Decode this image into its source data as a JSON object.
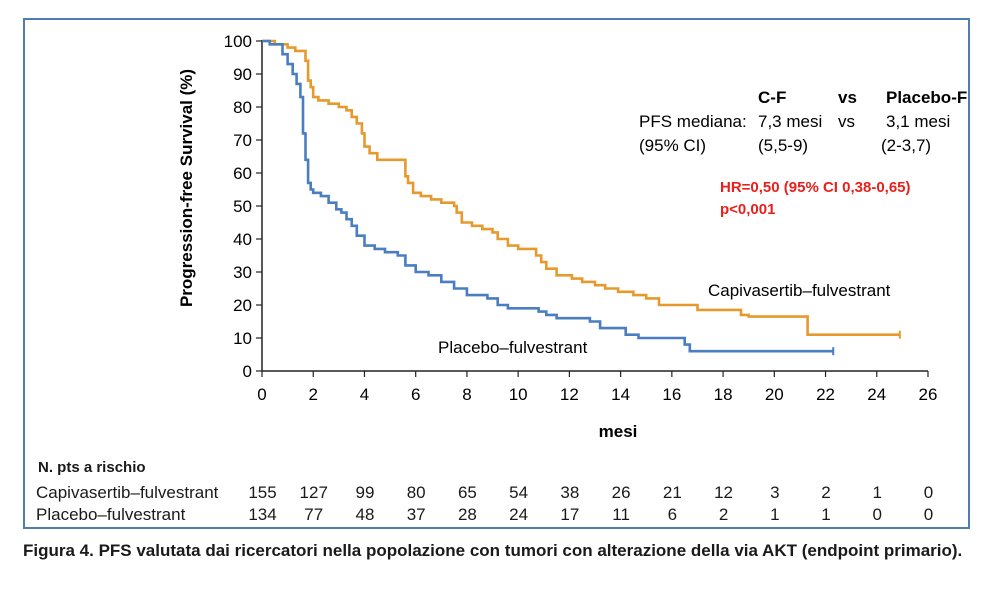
{
  "chart_data": {
    "type": "line",
    "xlabel": "mesi",
    "ylabel": "Progression-free Survival (%)",
    "xlim": [
      0,
      26
    ],
    "ylim": [
      0,
      100
    ],
    "x_ticks": [
      "0",
      "2",
      "4",
      "6",
      "8",
      "10",
      "12",
      "14",
      "16",
      "18",
      "20",
      "22",
      "24",
      "26"
    ],
    "y_ticks": [
      "0",
      "10",
      "20",
      "30",
      "40",
      "50",
      "60",
      "70",
      "80",
      "90",
      "100"
    ],
    "grid": false,
    "colors": {
      "capivasertib": "#e69a2e",
      "placebo": "#4a7ec0",
      "hr_text": "#e8211c",
      "frame": "#4f7cb1"
    },
    "series": [
      {
        "name": "Capivasertib–fulvestrant",
        "x": [
          0,
          0.5,
          1,
          1.3,
          1.7,
          1.8,
          1.9,
          2,
          2.2,
          2.6,
          3,
          3.3,
          3.5,
          3.7,
          3.9,
          4,
          4.2,
          4.5,
          5,
          5.5,
          5.6,
          5.7,
          5.9,
          6.2,
          6.6,
          7,
          7.3,
          7.5,
          7.6,
          7.8,
          8.2,
          8.6,
          9,
          9.2,
          9.6,
          10,
          10.7,
          10.9,
          11.1,
          11.5,
          12.1,
          12.5,
          13,
          13.4,
          13.9,
          14.5,
          15,
          15.5,
          16.6,
          17,
          18,
          18.7,
          19,
          19.5,
          21.3,
          22,
          24.9
        ],
        "y": [
          100,
          99,
          98,
          97,
          94,
          88,
          86,
          83,
          82,
          81,
          80,
          79,
          77,
          75,
          72,
          68,
          66,
          64,
          64,
          64,
          59,
          57,
          54,
          53,
          52,
          51,
          51,
          50,
          48,
          45,
          44,
          43,
          42,
          40,
          38,
          37,
          35,
          33,
          31,
          29,
          28,
          27,
          26,
          25,
          24,
          23,
          22,
          20,
          20,
          18.5,
          18.5,
          17,
          16.5,
          16.5,
          11,
          11,
          11
        ]
      },
      {
        "name": "Placebo–fulvestrant",
        "x": [
          0,
          0.3,
          0.8,
          1,
          1.2,
          1.35,
          1.5,
          1.6,
          1.7,
          1.8,
          1.9,
          2,
          2.3,
          2.6,
          2.9,
          3.1,
          3.3,
          3.5,
          3.7,
          4,
          4.4,
          4.8,
          5.3,
          5.6,
          6,
          6.5,
          7,
          7.5,
          8,
          8.8,
          9.2,
          9.6,
          10.8,
          11.1,
          11.5,
          12.8,
          13.2,
          14.2,
          14.7,
          16.5,
          16.7,
          18,
          19.5,
          22.3
        ],
        "y": [
          100,
          99,
          96,
          93,
          90,
          87,
          83,
          72,
          64,
          57,
          55,
          54,
          53,
          51,
          49,
          48,
          46,
          44,
          41,
          38,
          37,
          36,
          35,
          32,
          30,
          29,
          27,
          25,
          23,
          22,
          20,
          19,
          18,
          17,
          16,
          15,
          13,
          11,
          10,
          8,
          6,
          6,
          6,
          6
        ]
      }
    ],
    "series_labels": [
      "Capivasertib–fulvestrant",
      "Placebo–fulvestrant"
    ],
    "annotation": {
      "cf": "C-F",
      "vs": "vs",
      "placebo_f": "Placebo-F",
      "pfs_label": "PFS mediana:",
      "cf_median": "7,3 mesi",
      "vs2": "vs",
      "placebo_median": "3,1 mesi",
      "ci_label": "(95% CI)",
      "cf_ci": "(5,5-9)",
      "placebo_ci": "(2-3,7)",
      "hr": "HR=0,50 (95% CI 0,38-0,65)",
      "p": "p<0,001"
    }
  },
  "risk_table": {
    "title": "N. pts a rischio",
    "rows": [
      {
        "label": "Capivasertib–fulvestrant",
        "values": [
          "155",
          "127",
          "99",
          "80",
          "65",
          "54",
          "38",
          "26",
          "21",
          "12",
          "3",
          "2",
          "1",
          "0"
        ]
      },
      {
        "label": "Placebo–fulvestrant",
        "values": [
          "134",
          "77",
          "48",
          "37",
          "28",
          "24",
          "17",
          "11",
          "6",
          "2",
          "1",
          "1",
          "0",
          "0"
        ]
      }
    ]
  },
  "caption": "Figura 4. PFS valutata dai ricercatori nella popolazione con tumori con alterazione della via AKT (endpoint primario)."
}
